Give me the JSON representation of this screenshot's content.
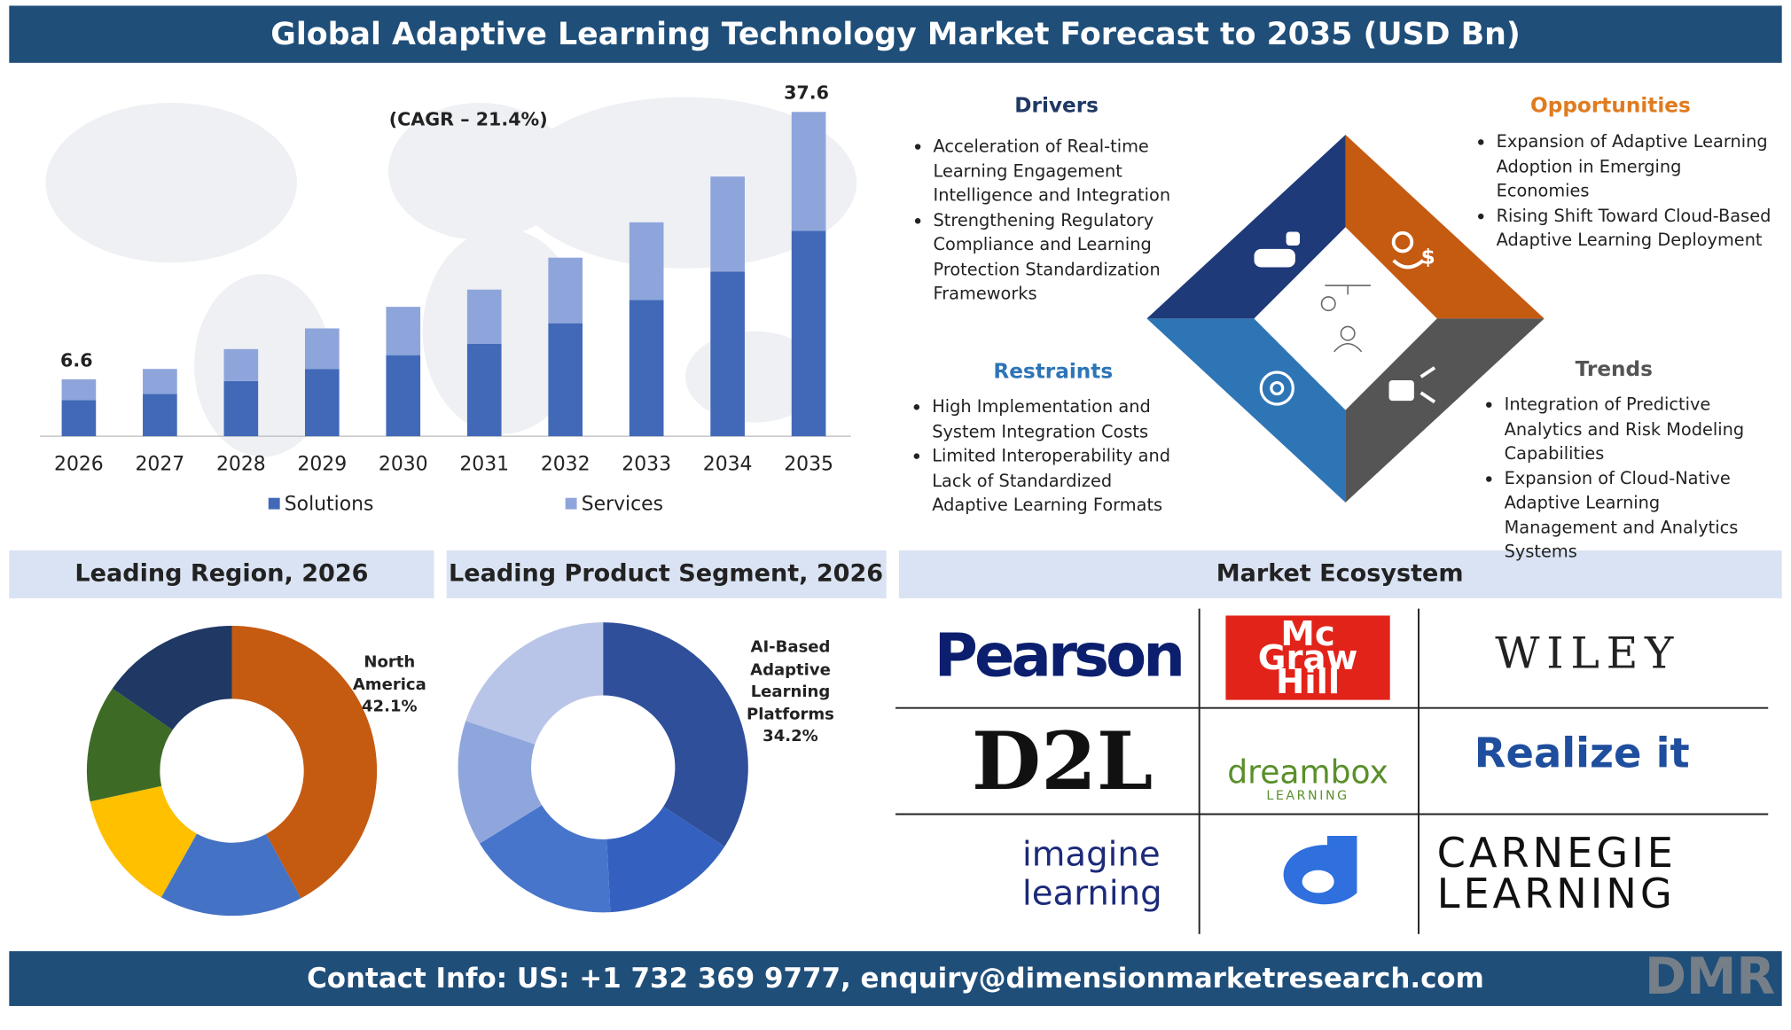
{
  "title": "Global Adaptive Learning Technology Market Forecast to 2035 (USD Bn)",
  "chart_data": [
    {
      "type": "bar",
      "stacked": true,
      "subtitle": "(CAGR – 21.4%)",
      "categories": [
        "2026",
        "2027",
        "2028",
        "2029",
        "2030",
        "2031",
        "2032",
        "2033",
        "2034",
        "2035"
      ],
      "series": [
        {
          "name": "Solutions",
          "color": "#4169b8",
          "values": [
            4.2,
            4.9,
            6.4,
            7.8,
            9.4,
            10.7,
            13.1,
            15.8,
            19.1,
            23.8
          ]
        },
        {
          "name": "Services",
          "color": "#8ea5db",
          "values": [
            2.4,
            2.9,
            3.7,
            4.7,
            5.6,
            6.3,
            7.6,
            9.0,
            11.0,
            13.8
          ]
        }
      ],
      "total_labels": [
        6.6,
        null,
        null,
        null,
        null,
        null,
        null,
        null,
        null,
        37.6
      ]
    },
    {
      "type": "donut",
      "title": "Leading Region, 2026",
      "categories": [
        "North America",
        null,
        null,
        null,
        null
      ],
      "values": [
        42.1,
        16,
        13.5,
        13,
        15.4
      ],
      "value_labels": [
        "42.1%",
        null,
        null,
        null,
        null
      ],
      "colors": [
        "#c55a11",
        "#4472c4",
        "#ffc000",
        "#3d6b25",
        "#1f3864"
      ]
    },
    {
      "type": "donut",
      "title": "Leading Product Segment, 2026",
      "categories": [
        "AI-Based Adaptive Learning Platforms",
        null,
        null,
        null,
        null
      ],
      "values": [
        34.2,
        15,
        17,
        14,
        19.8
      ],
      "value_labels": [
        "34.2%",
        null,
        null,
        null,
        null
      ],
      "colors": [
        "#2f4f9a",
        "#3461c0",
        "#4775cc",
        "#8fa6dd",
        "#b9c5e8"
      ]
    }
  ],
  "segments": {
    "drivers": {
      "title": "Drivers",
      "items": [
        "Acceleration of Real-time Learning Engagement Intelligence and Integration",
        "Strengthening Regulatory Compliance and Learning Protection Standardization Frameworks"
      ]
    },
    "opportunities": {
      "title": "Opportunities",
      "items": [
        "Expansion of Adaptive Learning Adoption in Emerging Economies",
        "Rising Shift Toward Cloud-Based Adaptive Learning Deployment"
      ]
    },
    "restraints": {
      "title": "Restraints",
      "items": [
        "High Implementation and System Integration Costs",
        "Limited Interoperability and Lack of Standardized Adaptive Learning Formats"
      ]
    },
    "trends": {
      "title": "Trends",
      "items": [
        "Integration of Predictive Analytics and Risk Modeling Capabilities",
        "Expansion of Cloud-Native Adaptive Learning Management and Analytics Systems"
      ]
    }
  },
  "ecosystem": {
    "title": "Market Ecosystem",
    "logos": [
      "Pearson",
      "Mc Graw Hill",
      "WILEY",
      "D2L",
      "dreambox",
      "LEARNING",
      "Realize it",
      "imagine learning",
      "CARNEGIE LEARNING"
    ]
  },
  "footer": "Contact Info: US: +1 732 369 9777, enquiry@dimensionmarketresearch.com",
  "brand": "DMR"
}
